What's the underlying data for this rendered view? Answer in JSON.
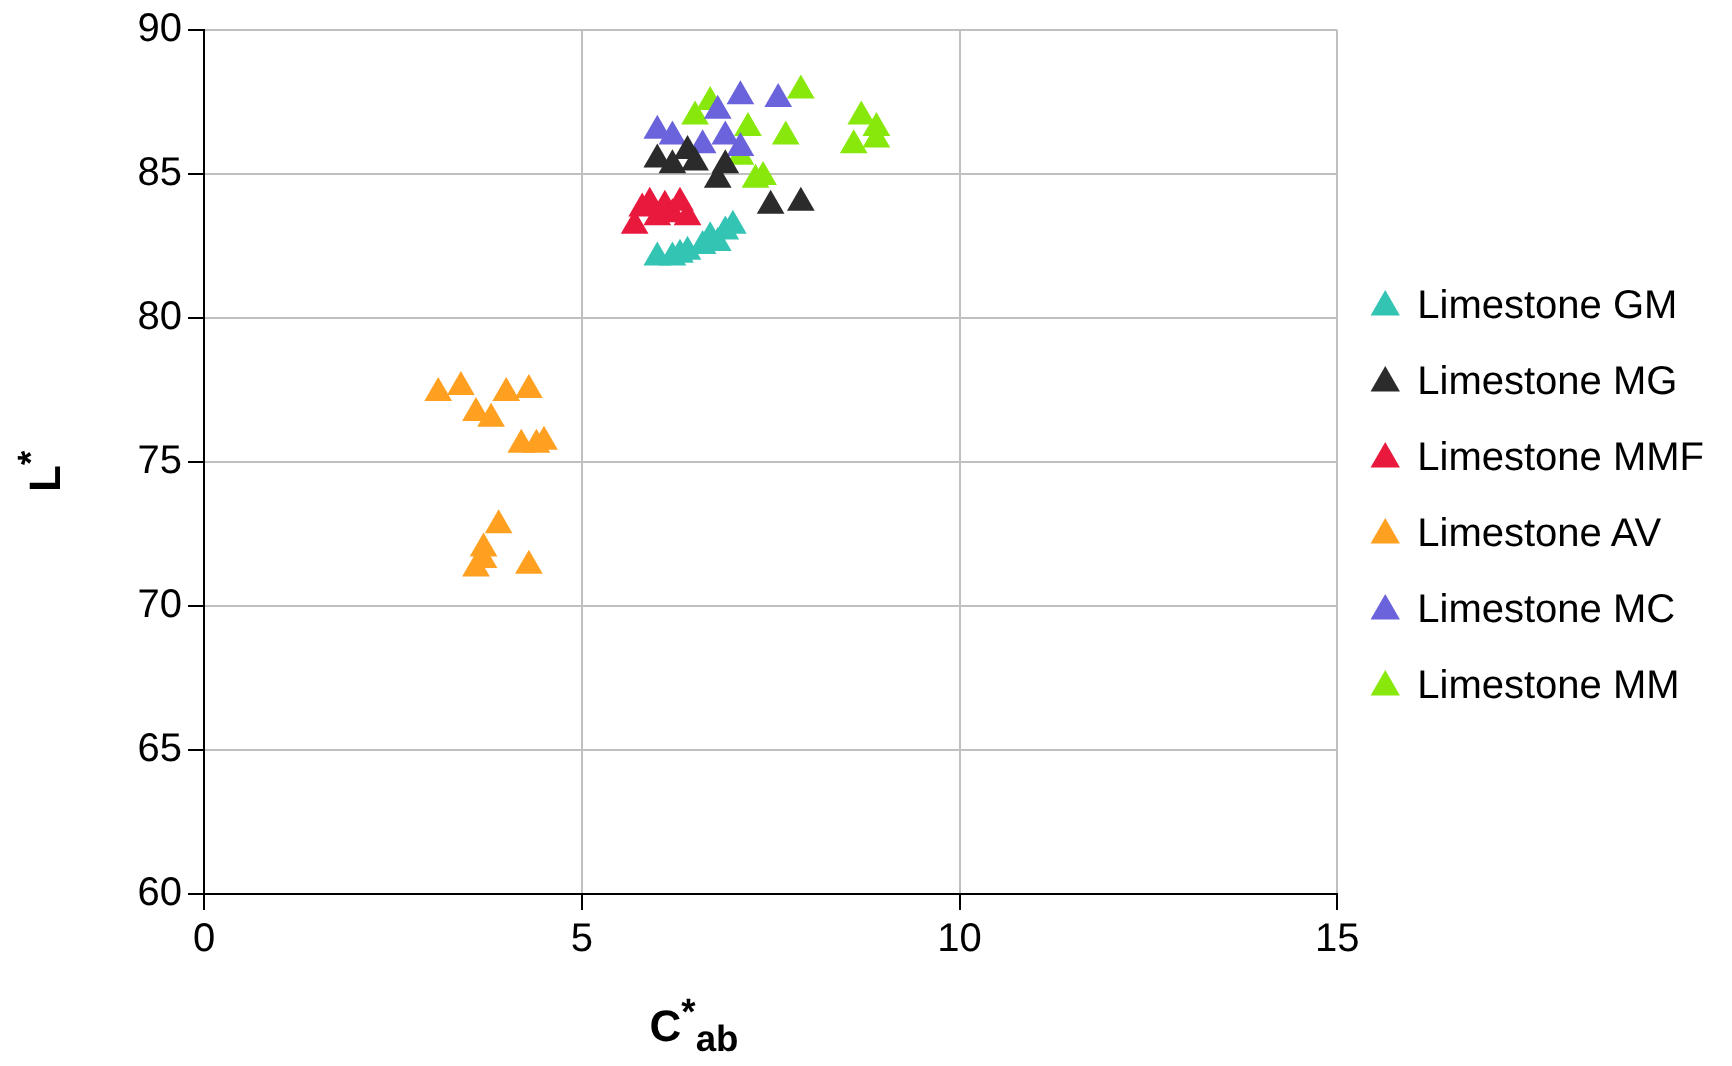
{
  "chart_data": {
    "type": "scatter",
    "xlabel": "C$^{*}$$_{ab}$",
    "ylabel": "L$^{*}$",
    "xlim": [
      0,
      15
    ],
    "xticks": [
      0,
      5,
      10,
      15
    ],
    "ylim": [
      60,
      90
    ],
    "yticks": [
      60,
      65,
      70,
      75,
      80,
      85,
      90
    ],
    "grid": true,
    "legend": "right",
    "marker": "triangle",
    "series": [
      {
        "name": "Limestone GM",
        "color": "#33c4b4",
        "x": [
          6.0,
          6.2,
          6.3,
          6.4,
          6.6,
          6.7,
          6.8,
          6.9,
          7.0
        ],
        "values": [
          82.1,
          82.1,
          82.2,
          82.3,
          82.5,
          82.8,
          82.6,
          83.0,
          83.2
        ]
      },
      {
        "name": "Limestone MG",
        "color": "#2b2b2b",
        "x": [
          6.0,
          6.2,
          6.4,
          6.5,
          6.8,
          6.9,
          7.5,
          7.9
        ],
        "values": [
          85.5,
          85.3,
          85.8,
          85.4,
          84.8,
          85.3,
          83.9,
          84.0
        ]
      },
      {
        "name": "Limestone MMF",
        "color": "#e8193c",
        "x": [
          5.7,
          5.8,
          5.9,
          6.0,
          6.1,
          6.2,
          6.3,
          6.4
        ],
        "values": [
          83.2,
          83.8,
          84.0,
          83.5,
          83.9,
          83.6,
          84.0,
          83.5
        ]
      },
      {
        "name": "Limestone AV",
        "color": "#ffa020",
        "x": [
          3.1,
          3.4,
          3.6,
          3.8,
          4.0,
          4.3,
          4.2,
          4.4,
          4.5,
          3.7,
          3.6,
          3.9,
          4.3,
          3.7
        ],
        "values": [
          77.4,
          77.6,
          76.7,
          76.5,
          77.4,
          77.5,
          75.6,
          75.6,
          75.7,
          72.0,
          71.3,
          72.8,
          71.4,
          71.6
        ]
      },
      {
        "name": "Limestone MC",
        "color": "#6a63dc",
        "x": [
          6.0,
          6.2,
          6.6,
          6.8,
          7.1,
          7.6,
          6.9,
          7.1
        ],
        "values": [
          86.5,
          86.3,
          86.0,
          87.2,
          87.7,
          87.6,
          86.3,
          85.9
        ]
      },
      {
        "name": "Limestone MM",
        "color": "#88e80c",
        "x": [
          6.5,
          6.7,
          7.2,
          7.4,
          7.7,
          7.9,
          8.7,
          8.9,
          8.6,
          8.9,
          7.1,
          7.3
        ],
        "values": [
          87.0,
          87.5,
          86.6,
          84.9,
          86.3,
          87.9,
          87.0,
          86.6,
          86.0,
          86.2,
          85.6,
          84.8
        ]
      }
    ]
  }
}
